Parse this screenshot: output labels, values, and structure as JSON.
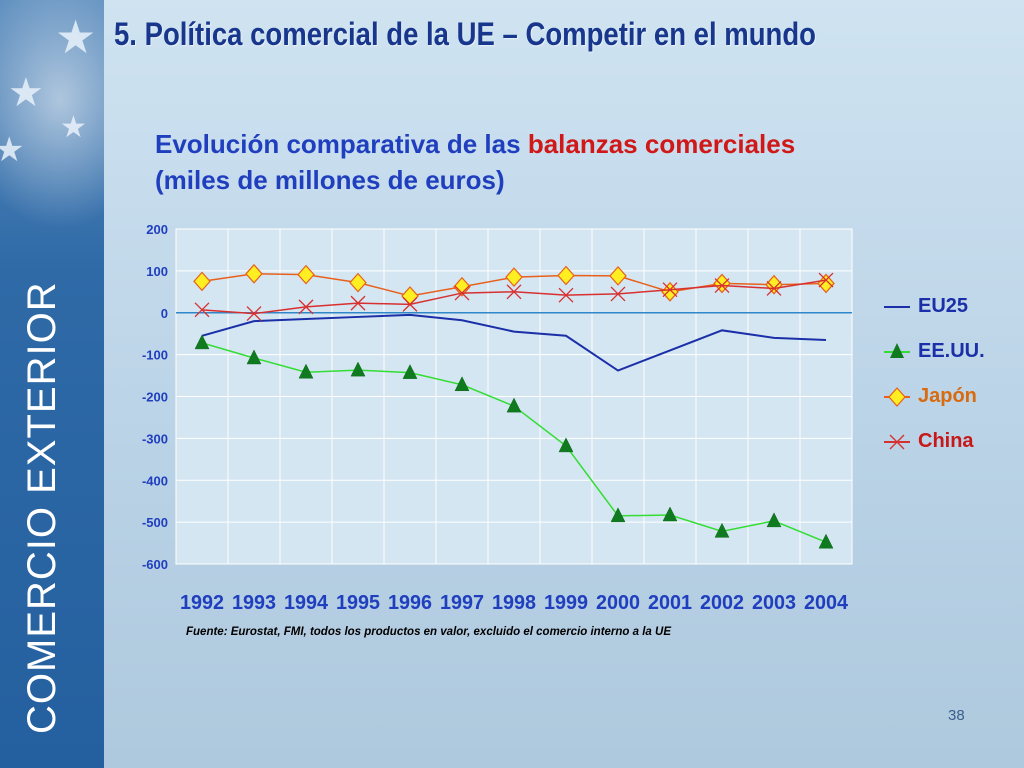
{
  "slide": {
    "title": "5. Política comercial de la UE – Competir en el mundo",
    "sidebar_label": "COMERCIO EXTERIOR",
    "page_number": "38"
  },
  "chart_data": {
    "type": "line",
    "title_part1": "Evolución comparativa de las ",
    "title_highlight": "balanzas comerciales",
    "title_line2": "(miles de millones de euros)",
    "categories": [
      "1992",
      "1993",
      "1994",
      "1995",
      "1996",
      "1997",
      "1998",
      "1999",
      "2000",
      "2001",
      "2002",
      "2003",
      "2004"
    ],
    "yticks": [
      "200",
      "100",
      "0",
      "-100",
      "-200",
      "-300",
      "-400",
      "-500",
      "-600"
    ],
    "ylim": [
      -600,
      200
    ],
    "grid": true,
    "legend_position": "right",
    "series": [
      {
        "name": "EU25",
        "color": "#1a2fa8",
        "marker": "none",
        "values": [
          -55,
          -20,
          -15,
          -10,
          -5,
          -18,
          -45,
          -55,
          -138,
          -90,
          -42,
          -60,
          -65
        ]
      },
      {
        "name": "EE.UU.",
        "color": "#33dd33",
        "marker": "triangle",
        "values": [
          -72,
          -108,
          -142,
          -137,
          -143,
          -172,
          -223,
          -318,
          -485,
          -483,
          -522,
          -497,
          -548
        ]
      },
      {
        "name": "Japón",
        "color": "#e8601c",
        "marker": "diamond",
        "values": [
          75,
          93,
          91,
          72,
          40,
          62,
          85,
          89,
          88,
          50,
          70,
          67,
          70
        ]
      },
      {
        "name": "China",
        "color": "#d83030",
        "marker": "x",
        "values": [
          7,
          -2,
          14,
          23,
          20,
          47,
          50,
          42,
          45,
          55,
          65,
          58,
          78
        ]
      }
    ],
    "legend_text_colors": [
      "#1a2fa8",
      "#1a2fa8",
      "#d86a10",
      "#c81818"
    ],
    "source_note": "Fuente: Eurostat, FMI, todos los productos en valor, excluido el comercio interno a la UE"
  }
}
